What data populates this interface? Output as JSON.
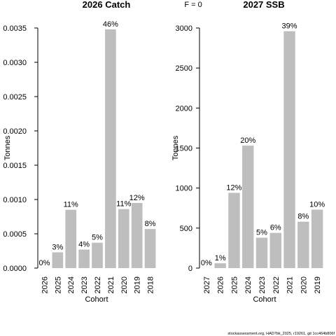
{
  "header": {
    "f_label": "F = 0"
  },
  "footer": {
    "text": "stockassessment.org, HAD7bk_2025, r19261, git 1cc464b806f"
  },
  "chart_data": [
    {
      "type": "bar",
      "title": "2026 Catch",
      "xlabel": "Cohort",
      "ylabel": "Tonnes",
      "ylim": [
        0,
        0.0035
      ],
      "yticks": [
        "0.0000",
        "0.0005",
        "0.0010",
        "0.0015",
        "0.0020",
        "0.0025",
        "0.0030",
        "0.0035"
      ],
      "categories": [
        "2026",
        "2025",
        "2024",
        "2023",
        "2022",
        "2021",
        "2020",
        "2019",
        "2018"
      ],
      "values": [
        0.0,
        0.00023,
        0.00085,
        0.00027,
        0.00037,
        0.00348,
        0.00086,
        0.00095,
        0.00057
      ],
      "labels": [
        "0%",
        "3%",
        "11%",
        "4%",
        "5%",
        "46%",
        "11%",
        "12%",
        "8%"
      ],
      "bar_color": "#bebebe"
    },
    {
      "type": "bar",
      "title": "2027 SSB",
      "xlabel": "Cohort",
      "ylabel": "Tonnes",
      "ylim": [
        0,
        3000
      ],
      "yticks": [
        "0",
        "500",
        "1000",
        "1500",
        "2000",
        "2500",
        "3000"
      ],
      "categories": [
        "2027",
        "2026",
        "2025",
        "2024",
        "2023",
        "2022",
        "2021",
        "2020",
        "2019"
      ],
      "values": [
        0,
        60,
        940,
        1530,
        380,
        440,
        2960,
        580,
        730
      ],
      "labels": [
        "0%",
        "1%",
        "12%",
        "20%",
        "5%",
        "6%",
        "39%",
        "8%",
        "10%"
      ],
      "bar_color": "#bebebe"
    }
  ]
}
